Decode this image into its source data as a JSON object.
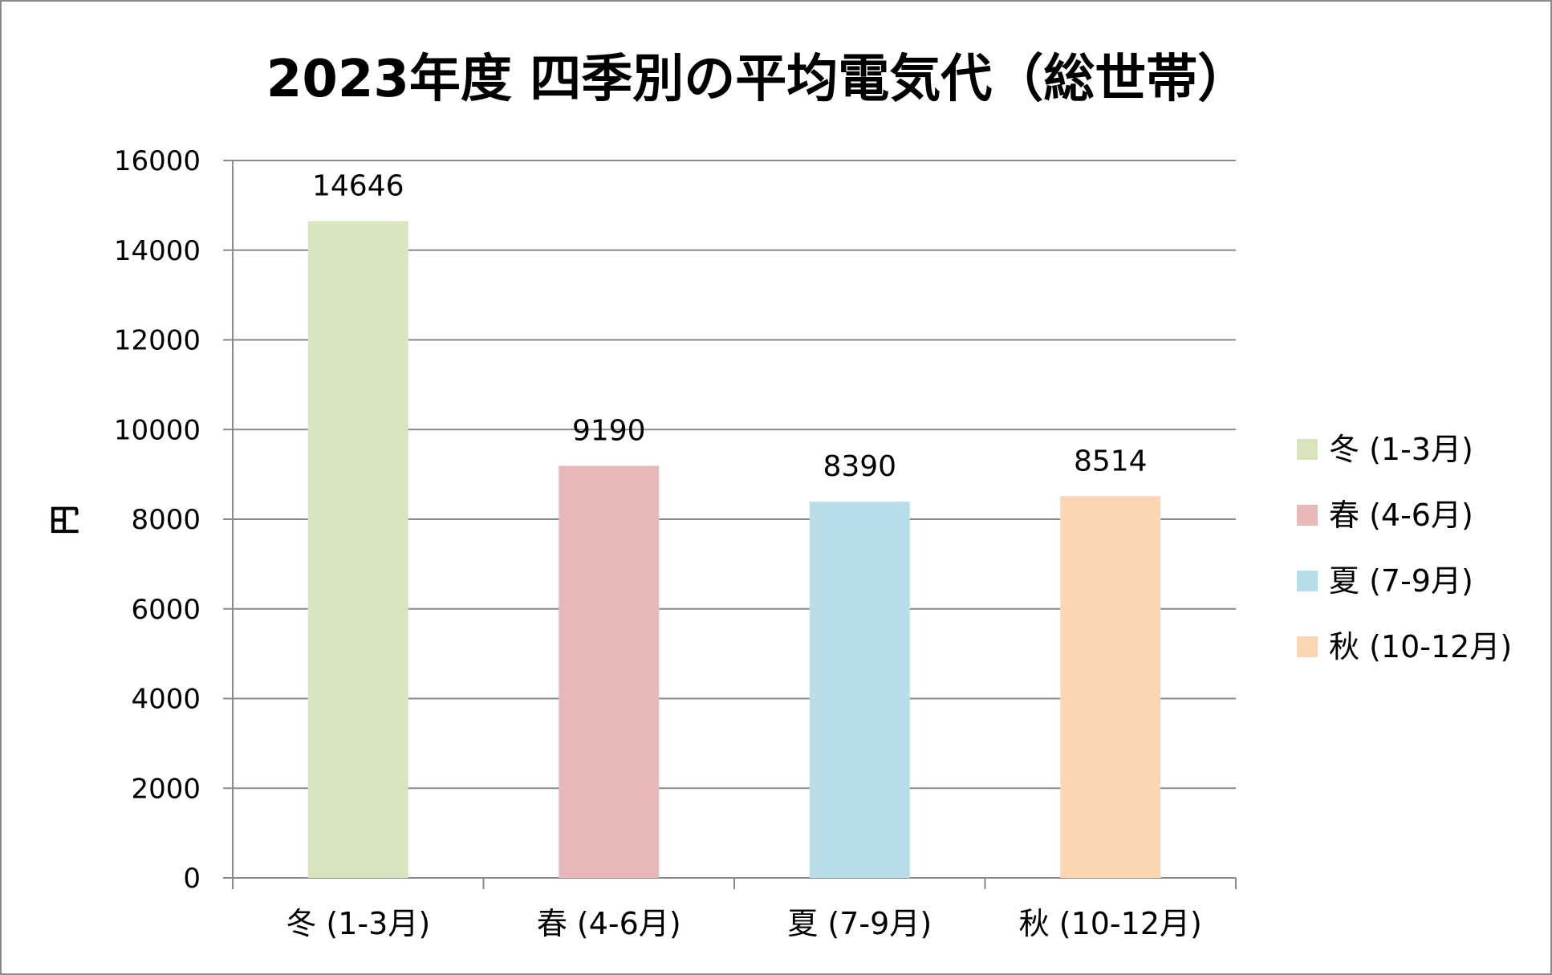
{
  "chart_data": {
    "type": "bar",
    "title": "2023年度 四季別の平均電気代（総世帯）",
    "xlabel": "",
    "ylabel": "円",
    "ylim": [
      0,
      16000
    ],
    "yticks": [
      0,
      2000,
      4000,
      6000,
      8000,
      10000,
      12000,
      14000,
      16000
    ],
    "grid": true,
    "legend_position": "right",
    "categories": [
      "冬 (1-3月)",
      "春 (4-6月)",
      "夏 (7-9月)",
      "秋 (10-12月)"
    ],
    "values": [
      14646,
      9190,
      8390,
      8514
    ],
    "data_labels": [
      "14646",
      "9190",
      "8390",
      "8514"
    ],
    "colors": [
      "#d7e4bd",
      "#e6b9b8",
      "#b7dde8",
      "#fcd5b5"
    ],
    "legend": [
      "冬 (1-3月)",
      "春 (4-6月)",
      "夏 (7-9月)",
      "秋 (10-12月)"
    ]
  },
  "style": {
    "gridline_color": "#8a8a8a",
    "axis_color": "#8a8a8a",
    "border_color": "#8a8a8a"
  }
}
